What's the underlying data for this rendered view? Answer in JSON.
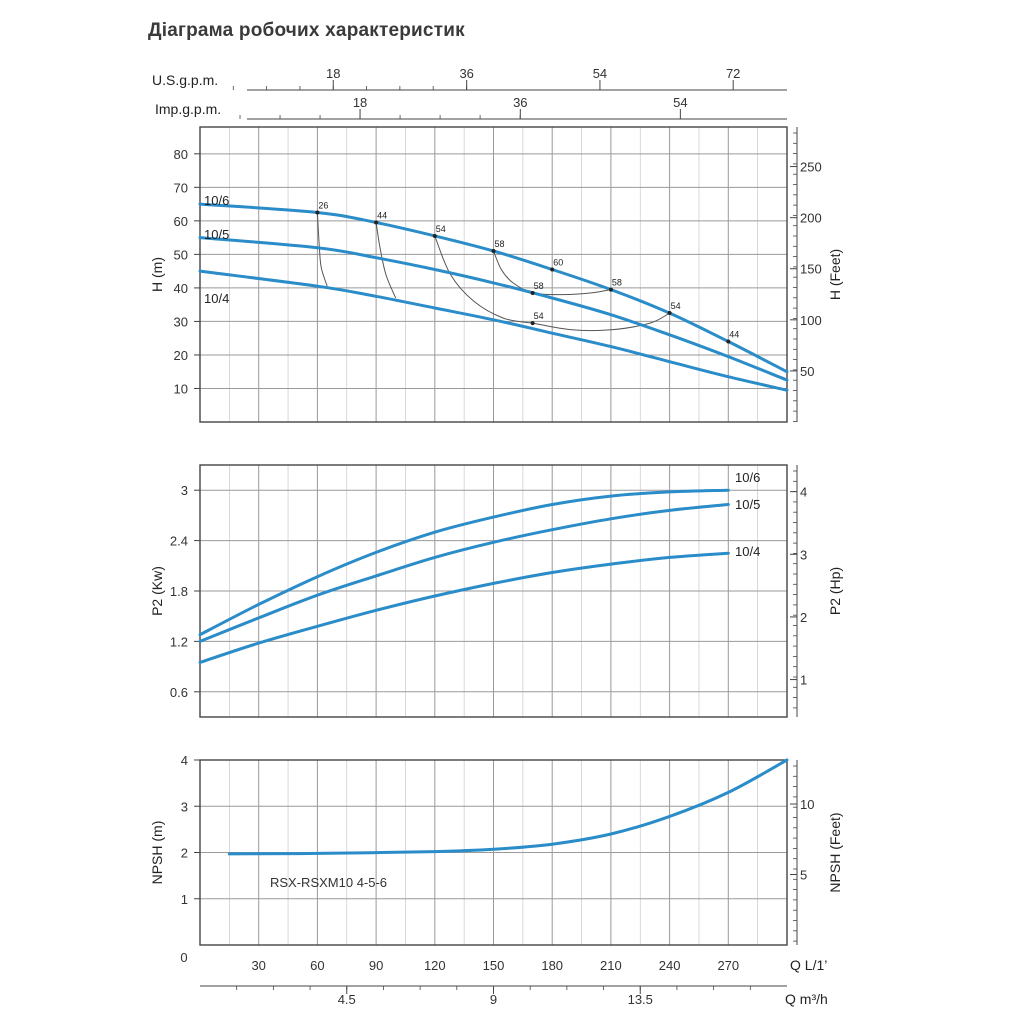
{
  "page": {
    "title": "Діаграма робочих характеристик"
  },
  "colors": {
    "curve": "#2a8cc8",
    "grid": "#9a9a9a",
    "frame": "#444444",
    "iso": "#555555"
  },
  "chart_data": [
    {
      "type": "line",
      "name": "head",
      "ylabel": "H (m)",
      "ylabel_right": "H (Feet)",
      "xlim": [
        0,
        300
      ],
      "ylim": [
        0,
        88
      ],
      "yticks": [
        10,
        20,
        30,
        40,
        50,
        60,
        70,
        80
      ],
      "yticks_right": [
        50,
        100,
        150,
        200,
        250
      ],
      "top_axes": [
        {
          "label": "U.S.g.p.m.",
          "ticks": [
            {
              "label": "18",
              "q": 68.1
            },
            {
              "label": "36",
              "q": 136.3
            },
            {
              "label": "54",
              "q": 204.4
            },
            {
              "label": "72",
              "q": 272.5
            }
          ]
        },
        {
          "label": "Imp.g.p.m.",
          "ticks": [
            {
              "label": "18",
              "q": 81.8
            },
            {
              "label": "36",
              "q": 163.7
            },
            {
              "label": "54",
              "q": 245.5
            }
          ]
        }
      ],
      "series": [
        {
          "name": "10/6",
          "x": [
            0,
            60,
            90,
            120,
            150,
            180,
            210,
            240,
            270,
            300
          ],
          "y": [
            65,
            62.5,
            59.5,
            55.5,
            51,
            45.5,
            39.5,
            32.5,
            24,
            15
          ]
        },
        {
          "name": "10/5",
          "x": [
            0,
            60,
            90,
            120,
            150,
            180,
            210,
            240,
            270,
            300
          ],
          "y": [
            55,
            52,
            49,
            45.5,
            41.5,
            37,
            32,
            26,
            19.5,
            12.5
          ]
        },
        {
          "name": "10/4",
          "x": [
            0,
            60,
            90,
            120,
            150,
            180,
            210,
            240,
            270,
            300
          ],
          "y": [
            45,
            40.5,
            37.5,
            34,
            30.5,
            26.5,
            22.5,
            18,
            13.5,
            9.5
          ]
        }
      ],
      "efficiency_labels": [
        {
          "label": "26",
          "x": 60,
          "y": 62.5
        },
        {
          "label": "44",
          "x": 90,
          "y": 59.5
        },
        {
          "label": "54",
          "x": 120,
          "y": 55.5
        },
        {
          "label": "58",
          "x": 150,
          "y": 51
        },
        {
          "label": "60",
          "x": 180,
          "y": 45.5
        },
        {
          "label": "58",
          "x": 170,
          "y": 38.5
        },
        {
          "label": "58",
          "x": 210,
          "y": 39.5
        },
        {
          "label": "54",
          "x": 170,
          "y": 29.5
        },
        {
          "label": "54",
          "x": 240,
          "y": 32.5
        },
        {
          "label": "44",
          "x": 270,
          "y": 24
        }
      ],
      "iso_curves": [
        {
          "x": [
            60,
            61,
            62,
            65
          ],
          "y": [
            62.5,
            52,
            46,
            40.5
          ]
        },
        {
          "x": [
            90,
            92,
            95,
            100
          ],
          "y": [
            59.5,
            52,
            44,
            37
          ]
        },
        {
          "x": [
            120,
            128,
            140,
            155,
            170
          ],
          "y": [
            55.5,
            44,
            36,
            31,
            29.5
          ]
        },
        {
          "x": [
            150,
            154,
            160,
            170,
            185,
            200,
            210
          ],
          "y": [
            51,
            45.5,
            41.5,
            38.5,
            38,
            38.5,
            39.5
          ]
        },
        {
          "x": [
            170,
            190,
            210,
            230,
            240
          ],
          "y": [
            29.5,
            27.5,
            27.5,
            29.5,
            32.5
          ]
        },
        {
          "x": [
            270,
            270
          ],
          "y": [
            24,
            24
          ]
        }
      ]
    },
    {
      "type": "line",
      "name": "power",
      "ylabel": "P2 (Kw)",
      "ylabel_right": "P2 (Hp)",
      "xlim": [
        0,
        300
      ],
      "ylim": [
        0.3,
        3.3
      ],
      "yticks": [
        0.6,
        1.2,
        1.8,
        2.4,
        3
      ],
      "ytick_labels": [
        "0.6",
        "1.2",
        "1.8",
        "2.4",
        "3"
      ],
      "yticks_right": [
        1,
        2,
        3,
        4
      ],
      "series": [
        {
          "name": "10/6",
          "x": [
            0,
            30,
            60,
            90,
            120,
            150,
            180,
            210,
            240,
            270
          ],
          "y": [
            1.28,
            1.64,
            1.97,
            2.26,
            2.5,
            2.68,
            2.83,
            2.93,
            2.98,
            3.0
          ]
        },
        {
          "name": "10/5",
          "x": [
            0,
            30,
            60,
            90,
            120,
            150,
            180,
            210,
            240,
            270
          ],
          "y": [
            1.2,
            1.48,
            1.75,
            1.98,
            2.2,
            2.38,
            2.53,
            2.66,
            2.76,
            2.83
          ]
        },
        {
          "name": "10/4",
          "x": [
            0,
            30,
            60,
            90,
            120,
            150,
            180,
            210,
            240,
            270
          ],
          "y": [
            0.95,
            1.18,
            1.38,
            1.57,
            1.74,
            1.89,
            2.02,
            2.12,
            2.2,
            2.25
          ]
        }
      ]
    },
    {
      "type": "line",
      "name": "npsh",
      "ylabel": "NPSH (m)",
      "ylabel_right": "NPSH (Feet)",
      "xlim": [
        0,
        300
      ],
      "ylim": [
        0,
        4
      ],
      "yticks": [
        1,
        2,
        3,
        4
      ],
      "yticks_right": [
        5,
        10
      ],
      "annotation": "RSX-RSXM10 4-5-6",
      "series": [
        {
          "name": "",
          "x": [
            15,
            60,
            120,
            150,
            180,
            210,
            240,
            270,
            300
          ],
          "y": [
            1.97,
            1.98,
            2.02,
            2.07,
            2.18,
            2.4,
            2.78,
            3.3,
            4.0
          ]
        }
      ],
      "x_axes": [
        {
          "unit": "Q L/1’",
          "ticks": [
            0,
            30,
            60,
            90,
            120,
            150,
            180,
            210,
            240,
            270
          ]
        },
        {
          "unit": "Q m³/h",
          "ticks": [
            {
              "label": "4.5",
              "q": 75
            },
            {
              "label": "9",
              "q": 150
            },
            {
              "label": "13.5",
              "q": 225
            }
          ]
        }
      ]
    }
  ]
}
